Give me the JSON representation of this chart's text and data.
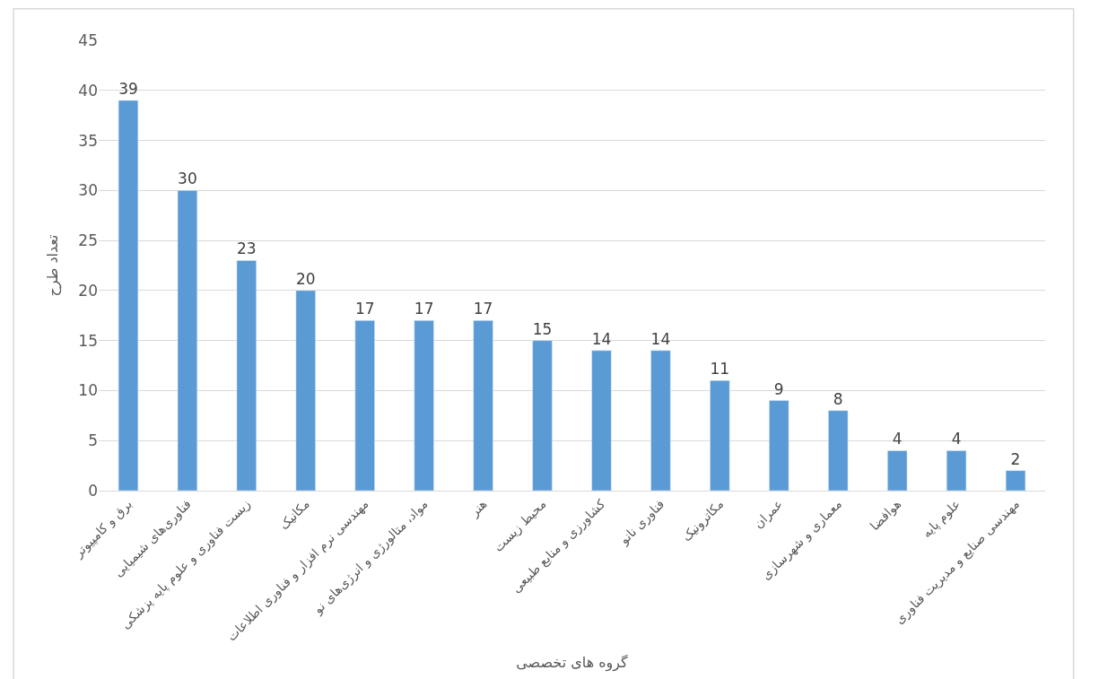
{
  "chart_data": {
    "type": "bar",
    "xlabel": "گروه های تخصصی",
    "ylabel": "تعداد طرح",
    "categories": [
      "برق و کامپیوتر",
      "فناوری‌های شیمیایی",
      "زیست فناوری و علوم پایه پزشکی",
      "مکانیک",
      "مهندسی نرم افزار و فناوری اطلاعات",
      "مواد، متالورژی و انرژی‌های نو",
      "هنر",
      "محیط زیست",
      "کشاورزی و منابع طبیعی",
      "فناوری نانو",
      "مکاترونیک",
      "عمران",
      "معماری و شهرسازی",
      "هوافضا",
      "علوم پایه",
      "مهندسی صنایع و مدیریت فناوری"
    ],
    "values": [
      39,
      30,
      23,
      20,
      17,
      17,
      17,
      15,
      14,
      14,
      11,
      9,
      8,
      4,
      4,
      2
    ],
    "color": "#5b9bd5",
    "ylim": [
      0,
      45
    ],
    "yticks": [
      0,
      5,
      10,
      15,
      20,
      25,
      30,
      35,
      40,
      45
    ],
    "grid": "y",
    "data_labels": true
  }
}
